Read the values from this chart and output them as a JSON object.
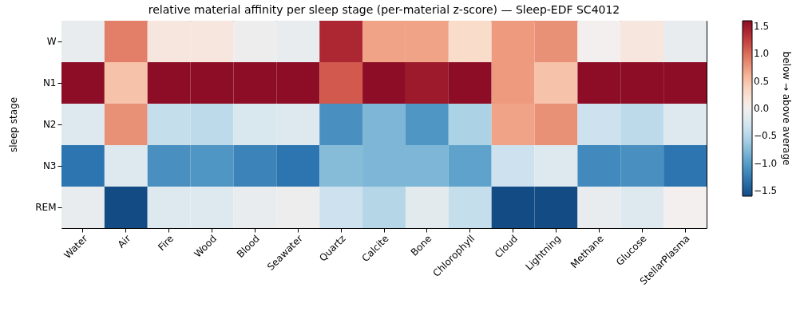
{
  "chart_data": {
    "type": "heatmap",
    "title": "relative material affinity per sleep stage (per-material z-score) — Sleep-EDF SC4012",
    "ylabel": "sleep stage",
    "clabel": "below  →  above average",
    "categories": [
      "Water",
      "Air",
      "Fire",
      "Wood",
      "Blood",
      "Seawater",
      "Quartz",
      "Calcite",
      "Bone",
      "Chlorophyll",
      "Cloud",
      "Lightning",
      "Methane",
      "Glucose",
      "StellarPlasma"
    ],
    "y_categories": [
      "W",
      "N1",
      "N2",
      "N3",
      "REM"
    ],
    "cells": [
      [
        -0.1,
        0.9,
        0.15,
        0.15,
        -0.05,
        -0.1,
        1.4,
        0.7,
        0.7,
        0.3,
        0.75,
        0.8,
        0.0,
        0.15,
        -0.1
      ],
      [
        1.6,
        0.5,
        1.6,
        1.6,
        1.6,
        1.6,
        1.1,
        1.6,
        1.5,
        1.6,
        0.75,
        0.5,
        1.6,
        1.6,
        1.6
      ],
      [
        -0.2,
        0.8,
        -0.4,
        -0.45,
        -0.25,
        -0.2,
        -1.1,
        -0.8,
        -1.05,
        -0.55,
        0.7,
        0.8,
        -0.35,
        -0.45,
        -0.2
      ],
      [
        -1.3,
        -0.2,
        -1.1,
        -1.05,
        -1.2,
        -1.3,
        -0.75,
        -0.8,
        -0.8,
        -0.95,
        -0.35,
        -0.2,
        -1.15,
        -1.1,
        -1.3
      ],
      [
        -0.1,
        -1.6,
        -0.2,
        -0.2,
        -0.1,
        -0.05,
        -0.35,
        -0.5,
        -0.15,
        -0.4,
        -1.6,
        -1.6,
        -0.1,
        -0.2,
        0.0
      ]
    ],
    "clim": [
      -1.6,
      1.6
    ],
    "cticks": [
      -1.5,
      {
        "value": -1.0,
        "label": "−1.0"
      },
      -0.5,
      {
        "value": 0.0,
        "label": "0.0"
      },
      0.5,
      {
        "value": 1.0,
        "label": "1.0"
      },
      1.5
    ]
  }
}
